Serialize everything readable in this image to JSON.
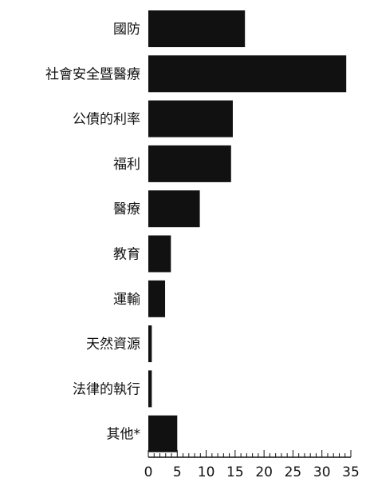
{
  "chart_data": {
    "type": "bar",
    "orientation": "horizontal",
    "categories": [
      "國防",
      "社會安全暨醫療",
      "公債的利率",
      "福利",
      "醫療",
      "教育",
      "運輸",
      "天然資源",
      "法律的執行",
      "其他*"
    ],
    "values": [
      16.7,
      34.2,
      14.6,
      14.3,
      8.9,
      3.9,
      2.9,
      0.6,
      0.6,
      5.0
    ],
    "xlim": [
      0,
      35
    ],
    "xticks": [
      "0",
      "5",
      "10",
      "15",
      "20",
      "25",
      "30",
      "35"
    ],
    "title": "",
    "xlabel": "",
    "ylabel": "",
    "grid": false,
    "bar_color": "#111111"
  }
}
